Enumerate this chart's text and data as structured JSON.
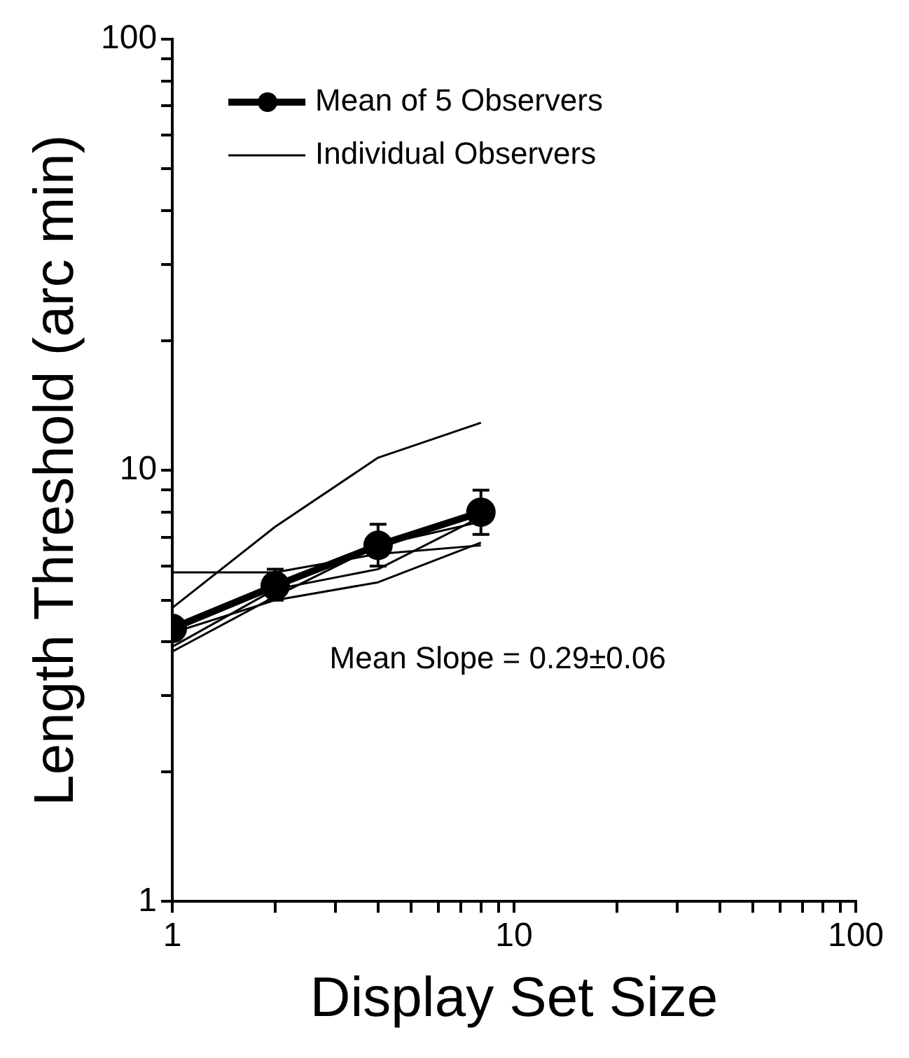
{
  "chart_data": {
    "type": "line",
    "xlabel": "Display Set Size",
    "ylabel": "Length Threshold (arc min)",
    "x": [
      1,
      2,
      4,
      8
    ],
    "log": "xy",
    "xlim": [
      1,
      100
    ],
    "ylim": [
      1,
      100
    ],
    "xticks": [
      1,
      {
        "value": 2,
        "label": null
      },
      {
        "value": 3,
        "label": null
      },
      {
        "value": 4,
        "label": null
      },
      {
        "value": 5,
        "label": null
      },
      {
        "value": 6,
        "label": null
      },
      {
        "value": 7,
        "label": null
      },
      {
        "value": 8,
        "label": null
      },
      {
        "value": 9,
        "label": null
      },
      10,
      {
        "value": 20,
        "label": null
      },
      {
        "value": 30,
        "label": null
      },
      {
        "value": 40,
        "label": null
      },
      {
        "value": 50,
        "label": null
      },
      {
        "value": 60,
        "label": null
      },
      {
        "value": 70,
        "label": null
      },
      {
        "value": 80,
        "label": null
      },
      {
        "value": 90,
        "label": null
      },
      100
    ],
    "yticks": [
      1,
      {
        "value": 2,
        "label": null
      },
      {
        "value": 3,
        "label": null
      },
      {
        "value": 4,
        "label": null
      },
      {
        "value": 5,
        "label": null
      },
      {
        "value": 6,
        "label": null
      },
      {
        "value": 7,
        "label": null
      },
      {
        "value": 8,
        "label": null
      },
      {
        "value": 9,
        "label": null
      },
      10,
      {
        "value": 20,
        "label": null
      },
      {
        "value": 30,
        "label": null
      },
      {
        "value": 40,
        "label": null
      },
      {
        "value": 50,
        "label": null
      },
      {
        "value": 60,
        "label": null
      },
      {
        "value": 70,
        "label": null
      },
      {
        "value": 80,
        "label": null
      },
      {
        "value": 90,
        "label": null
      },
      100
    ],
    "legend": "top left",
    "grid": false,
    "series": [
      {
        "name": "Mean of 5 Observers",
        "color": "#000000",
        "values": [
          4.3,
          5.4,
          6.7,
          8.0
        ],
        "errors": [
          null,
          [
            5.0,
            5.9
          ],
          [
            6.0,
            7.5
          ],
          [
            7.1,
            9.0
          ]
        ],
        "marker": "circle"
      },
      {
        "name": "Individual Observers",
        "color": "#000000",
        "values": [
          4.8,
          7.4,
          10.7,
          12.9
        ],
        "marker": "none"
      },
      {
        "color": "#000000",
        "values": [
          5.8,
          5.8,
          6.4,
          6.7
        ],
        "marker": "none"
      },
      {
        "color": "#000000",
        "values": [
          4.2,
          5.0,
          5.5,
          6.8
        ],
        "marker": "none"
      },
      {
        "color": "#000000",
        "values": [
          3.9,
          5.3,
          5.9,
          7.8
        ],
        "marker": "none"
      },
      {
        "color": "#000000",
        "values": [
          3.8,
          5.1,
          6.7,
          7.6
        ],
        "marker": "none"
      }
    ],
    "annotations": [
      "Mean Slope = 0.29±0.06"
    ]
  }
}
